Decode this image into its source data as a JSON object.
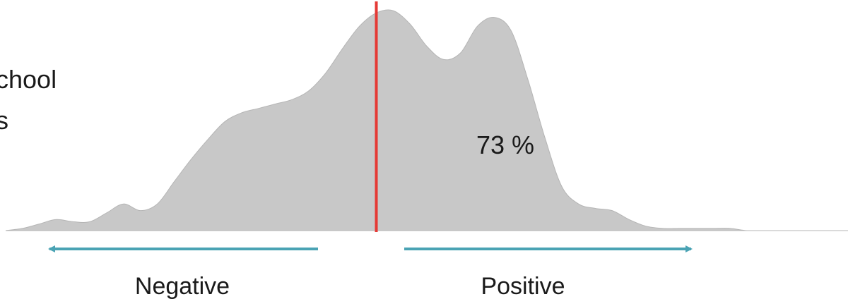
{
  "left_text": {
    "line1": "chool",
    "line2": "s"
  },
  "chart_data": {
    "type": "area",
    "title": "",
    "xlabel": "",
    "ylabel": "",
    "grid": false,
    "shaded_share_label": "73 %",
    "directions": {
      "negative": "Negative",
      "positive": "Positive"
    },
    "colors": {
      "fill": "#c8c8c8",
      "divider": "#e53935",
      "arrows": "#4aa3b4"
    },
    "divider_x": 0,
    "xlim": [
      -1.1,
      1.4
    ],
    "ylim": [
      0,
      1.0
    ],
    "x": [
      -1.1,
      -1.05,
      -1.0,
      -0.95,
      -0.9,
      -0.85,
      -0.8,
      -0.75,
      -0.7,
      -0.65,
      -0.6,
      -0.55,
      -0.5,
      -0.45,
      -0.4,
      -0.35,
      -0.3,
      -0.25,
      -0.2,
      -0.15,
      -0.1,
      -0.05,
      0.0,
      0.05,
      0.1,
      0.15,
      0.2,
      0.25,
      0.3,
      0.35,
      0.4,
      0.45,
      0.5,
      0.55,
      0.6,
      0.65,
      0.7,
      0.75,
      0.8,
      0.85,
      0.9,
      0.95,
      1.0,
      1.05,
      1.1,
      1.15,
      1.2,
      1.25,
      1.3,
      1.35,
      1.4
    ],
    "y": [
      0.0,
      0.01,
      0.03,
      0.05,
      0.04,
      0.04,
      0.08,
      0.12,
      0.09,
      0.12,
      0.22,
      0.32,
      0.41,
      0.49,
      0.53,
      0.55,
      0.57,
      0.59,
      0.63,
      0.71,
      0.82,
      0.92,
      0.98,
      0.99,
      0.93,
      0.83,
      0.77,
      0.8,
      0.92,
      0.96,
      0.9,
      0.68,
      0.42,
      0.2,
      0.12,
      0.1,
      0.09,
      0.05,
      0.02,
      0.01,
      0.01,
      0.01,
      0.01,
      0.01,
      0.0,
      0.0,
      0.0,
      0.0,
      0.0,
      0.0,
      0.0
    ]
  }
}
